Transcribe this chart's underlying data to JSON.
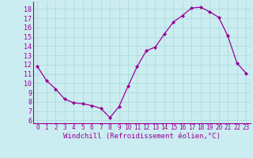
{
  "x": [
    0,
    1,
    2,
    3,
    4,
    5,
    6,
    7,
    8,
    9,
    10,
    11,
    12,
    13,
    14,
    15,
    16,
    17,
    18,
    19,
    20,
    21,
    22,
    23
  ],
  "y": [
    11.8,
    10.3,
    9.4,
    8.3,
    7.9,
    7.8,
    7.6,
    7.3,
    6.3,
    7.5,
    9.7,
    11.8,
    13.5,
    13.9,
    15.3,
    16.6,
    17.3,
    18.1,
    18.2,
    17.7,
    17.1,
    15.1,
    12.2,
    11.1
  ],
  "line_color": "#990099",
  "marker": "D",
  "marker_size": 2,
  "bg_color": "#cbecf0",
  "grid_color": "#aadddd",
  "xlabel": "Windchill (Refroidissement éolien,°C)",
  "ylabel_ticks": [
    6,
    7,
    8,
    9,
    10,
    11,
    12,
    13,
    14,
    15,
    16,
    17,
    18
  ],
  "ylim": [
    5.7,
    18.8
  ],
  "xlim": [
    -0.5,
    23.5
  ],
  "tick_color": "#990099",
  "label_color": "#990099",
  "font_name": "monospace",
  "xlabel_fontsize": 6.5,
  "ytick_fontsize": 6.0,
  "xtick_fontsize": 5.5
}
